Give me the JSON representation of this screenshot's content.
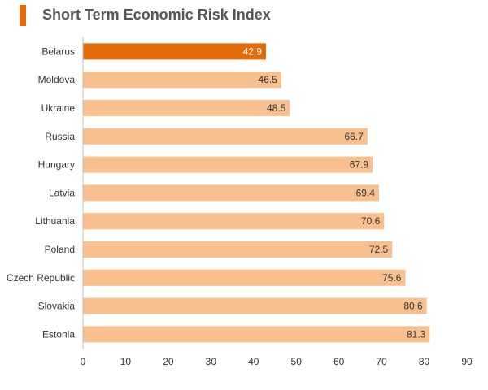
{
  "colors": {
    "accent": "#E36C0A",
    "highlight_bar": "#E36C0A",
    "bar": "#F8C08F",
    "title_text": "#555555",
    "axis": "#BFBFBF"
  },
  "chart_data": {
    "type": "bar",
    "orientation": "horizontal",
    "title": "Short Term Economic Risk Index",
    "categories": [
      "Belarus",
      "Moldova",
      "Ukraine",
      "Russia",
      "Hungary",
      "Latvia",
      "Lithuania",
      "Poland",
      "Czech Republic",
      "Slovakia",
      "Estonia"
    ],
    "values": [
      42.9,
      46.5,
      48.5,
      66.7,
      67.9,
      69.4,
      70.6,
      72.5,
      75.6,
      80.6,
      81.3
    ],
    "value_labels": [
      "42.9",
      "46.5",
      "48.5",
      "66.7",
      "67.9",
      "69.4",
      "70.6",
      "72.5",
      "75.6",
      "80.6",
      "81.3"
    ],
    "highlighted_category": "Belarus",
    "xlim": [
      0,
      90
    ],
    "xticks": [
      "0",
      "10",
      "20",
      "30",
      "40",
      "50",
      "60",
      "70",
      "80",
      "90"
    ],
    "xlabel": "",
    "ylabel": "",
    "grid": false,
    "legend": "none"
  }
}
